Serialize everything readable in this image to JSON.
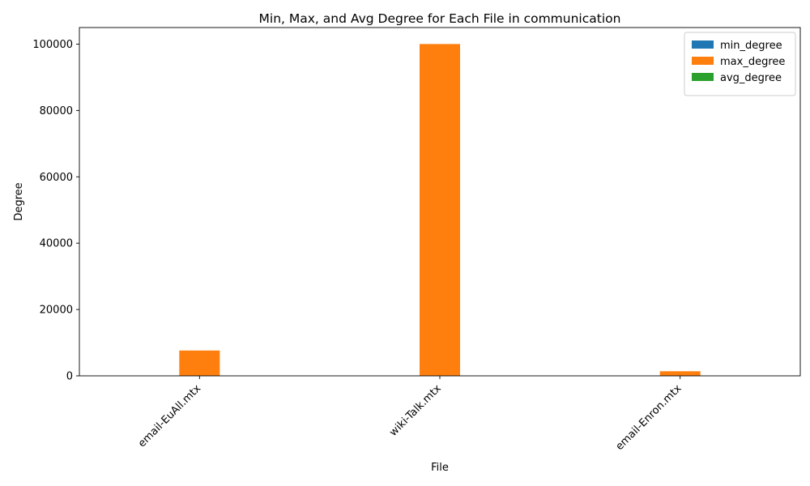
{
  "chart_data": {
    "type": "bar",
    "title": "Min, Max, and Avg Degree for Each File in communication",
    "xlabel": "File",
    "ylabel": "Degree",
    "categories": [
      "email-EuAll.mtx",
      "wiki-Talk.mtx",
      "email-Enron.mtx"
    ],
    "series": [
      {
        "name": "min_degree",
        "values": [
          1,
          1,
          1
        ],
        "color": "#1f77b4"
      },
      {
        "name": "max_degree",
        "values": [
          7636,
          100029,
          1383
        ],
        "color": "#ff7f0e"
      },
      {
        "name": "avg_degree",
        "values": [
          3,
          4.2,
          10
        ],
        "color": "#2ca02c"
      }
    ],
    "ylim": [
      0,
      105000
    ],
    "yticks": [
      0,
      20000,
      40000,
      60000,
      80000,
      100000
    ],
    "grid": false,
    "legend": "top-right"
  }
}
